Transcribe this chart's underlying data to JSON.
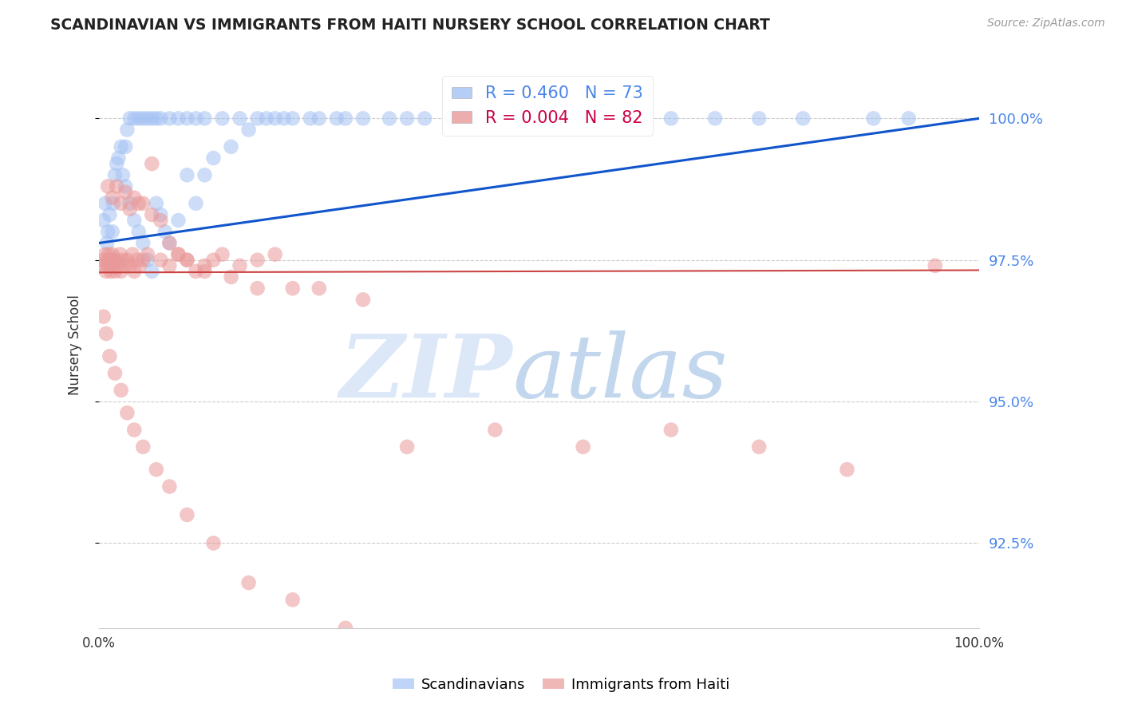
{
  "title": "SCANDINAVIAN VS IMMIGRANTS FROM HAITI NURSERY SCHOOL CORRELATION CHART",
  "source": "Source: ZipAtlas.com",
  "ylabel": "Nursery School",
  "legend_blue": "R = 0.460   N = 73",
  "legend_pink": "R = 0.004   N = 82",
  "legend_label_blue": "Scandinavians",
  "legend_label_pink": "Immigrants from Haiti",
  "blue_color": "#a4c2f4",
  "pink_color": "#ea9999",
  "trend_blue_color": "#1155cc",
  "trend_pink_color": "#cc4444",
  "ytick_color": "#4a86e8",
  "xtick_color": "#333333",
  "background_color": "#ffffff",
  "xmin": 0.0,
  "xmax": 100.0,
  "ymin": 91.0,
  "ymax": 101.0,
  "yticks": [
    92.5,
    95.0,
    97.5,
    100.0
  ],
  "blue_scatter_x": [
    0.5,
    0.7,
    0.9,
    1.0,
    1.2,
    1.3,
    1.5,
    1.6,
    1.8,
    2.0,
    2.2,
    2.5,
    2.7,
    3.0,
    3.2,
    3.5,
    4.0,
    4.5,
    5.0,
    5.5,
    6.0,
    6.5,
    7.0,
    8.0,
    9.0,
    10.0,
    11.0,
    12.0,
    14.0,
    16.0,
    18.0,
    20.0,
    22.0,
    25.0,
    28.0,
    35.0,
    40.0,
    50.0,
    60.0,
    70.0,
    80.0,
    88.0,
    92.0,
    3.0,
    3.5,
    4.0,
    4.5,
    5.0,
    5.5,
    6.0,
    6.5,
    7.0,
    7.5,
    8.0,
    9.0,
    10.0,
    11.0,
    12.0,
    13.0,
    15.0,
    17.0,
    19.0,
    21.0,
    24.0,
    27.0,
    30.0,
    33.0,
    37.0,
    42.0,
    48.0,
    55.0,
    65.0,
    75.0
  ],
  "blue_scatter_y": [
    98.2,
    98.5,
    97.8,
    98.0,
    98.3,
    97.5,
    98.0,
    98.5,
    99.0,
    99.2,
    99.3,
    99.5,
    99.0,
    99.5,
    99.8,
    100.0,
    100.0,
    100.0,
    100.0,
    100.0,
    100.0,
    100.0,
    100.0,
    100.0,
    100.0,
    100.0,
    100.0,
    100.0,
    100.0,
    100.0,
    100.0,
    100.0,
    100.0,
    100.0,
    100.0,
    100.0,
    100.0,
    100.0,
    100.0,
    100.0,
    100.0,
    100.0,
    100.0,
    98.8,
    98.5,
    98.2,
    98.0,
    97.8,
    97.5,
    97.3,
    98.5,
    98.3,
    98.0,
    97.8,
    98.2,
    99.0,
    98.5,
    99.0,
    99.3,
    99.5,
    99.8,
    100.0,
    100.0,
    100.0,
    100.0,
    100.0,
    100.0,
    100.0,
    100.0,
    100.0,
    100.0,
    100.0,
    100.0
  ],
  "pink_scatter_x": [
    0.3,
    0.5,
    0.7,
    0.8,
    0.9,
    1.0,
    1.1,
    1.2,
    1.3,
    1.4,
    1.5,
    1.6,
    1.7,
    1.8,
    2.0,
    2.2,
    2.4,
    2.5,
    2.7,
    3.0,
    3.2,
    3.5,
    3.8,
    4.0,
    4.3,
    4.6,
    5.0,
    5.5,
    6.0,
    7.0,
    8.0,
    9.0,
    10.0,
    11.0,
    12.0,
    13.0,
    14.0,
    16.0,
    18.0,
    20.0,
    1.0,
    1.5,
    2.0,
    2.5,
    3.0,
    3.5,
    4.0,
    4.5,
    5.0,
    6.0,
    7.0,
    8.0,
    9.0,
    10.0,
    12.0,
    15.0,
    18.0,
    22.0,
    25.0,
    30.0,
    0.5,
    0.8,
    1.2,
    1.8,
    2.5,
    3.2,
    4.0,
    5.0,
    6.5,
    8.0,
    10.0,
    13.0,
    17.0,
    22.0,
    28.0,
    35.0,
    45.0,
    55.0,
    65.0,
    75.0,
    85.0,
    95.0
  ],
  "pink_scatter_y": [
    97.4,
    97.5,
    97.6,
    97.3,
    97.4,
    97.5,
    97.6,
    97.4,
    97.3,
    97.5,
    97.6,
    97.4,
    97.5,
    97.3,
    97.5,
    97.4,
    97.6,
    97.3,
    97.5,
    97.4,
    97.5,
    97.4,
    97.6,
    97.3,
    97.5,
    97.4,
    97.5,
    97.6,
    99.2,
    97.5,
    97.4,
    97.6,
    97.5,
    97.3,
    97.4,
    97.5,
    97.6,
    97.4,
    97.5,
    97.6,
    98.8,
    98.6,
    98.8,
    98.5,
    98.7,
    98.4,
    98.6,
    98.5,
    98.5,
    98.3,
    98.2,
    97.8,
    97.6,
    97.5,
    97.3,
    97.2,
    97.0,
    97.0,
    97.0,
    96.8,
    96.5,
    96.2,
    95.8,
    95.5,
    95.2,
    94.8,
    94.5,
    94.2,
    93.8,
    93.5,
    93.0,
    92.5,
    91.8,
    91.5,
    91.0,
    94.2,
    94.5,
    94.2,
    94.5,
    94.2,
    93.8,
    97.4
  ],
  "pink_trend_y_at_0": 97.28,
  "pink_trend_y_at_100": 97.32,
  "blue_trend_y_at_0": 97.8,
  "blue_trend_y_at_100": 100.0
}
